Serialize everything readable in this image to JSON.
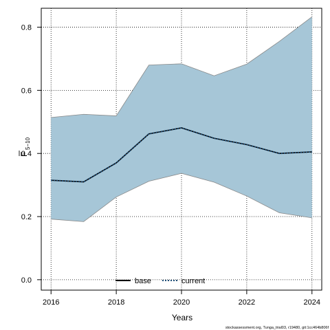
{
  "chart_data": {
    "type": "area",
    "title": "",
    "xlabel": "Years",
    "ylabel_main": "F",
    "ylabel_sub": "5−10",
    "xlim": [
      2015.7,
      2024.3
    ],
    "ylim": [
      -0.033,
      0.86
    ],
    "xticks": [
      2016,
      2018,
      2020,
      2022,
      2024
    ],
    "yticks": [
      0.0,
      0.2,
      0.4,
      0.6,
      0.8
    ],
    "ytick_labels": [
      "0.0",
      "0.2",
      "0.4",
      "0.6",
      "0.8"
    ],
    "grid": true,
    "x": [
      2016,
      2017,
      2018,
      2019,
      2020,
      2021,
      2022,
      2023,
      2024
    ],
    "band": {
      "lower": [
        0.192,
        0.184,
        0.262,
        0.312,
        0.337,
        0.309,
        0.265,
        0.212,
        0.196
      ],
      "upper": [
        0.514,
        0.524,
        0.519,
        0.68,
        0.684,
        0.646,
        0.683,
        0.755,
        0.833
      ],
      "color": "#a6c6d7",
      "edge_color": "#888888"
    },
    "series": [
      {
        "name": "base",
        "values": [
          0.315,
          0.31,
          0.37,
          0.462,
          0.481,
          0.448,
          0.428,
          0.4,
          0.405
        ],
        "color": "#000000",
        "style": "solid"
      },
      {
        "name": "current",
        "values": [
          0.315,
          0.31,
          0.37,
          0.462,
          0.481,
          0.448,
          0.428,
          0.4,
          0.405
        ],
        "color": "#1f4f78",
        "style": "dotted"
      }
    ],
    "legend": {
      "placement": "bottom-center",
      "entries": [
        {
          "label": "base",
          "color": "#000000",
          "style": "solid"
        },
        {
          "label": "current",
          "color": "#1f4f78",
          "style": "dotted"
        }
      ]
    }
  },
  "footer": "stockassessment.org, Tunga_trial03, r19480, git:1cc464b806f"
}
